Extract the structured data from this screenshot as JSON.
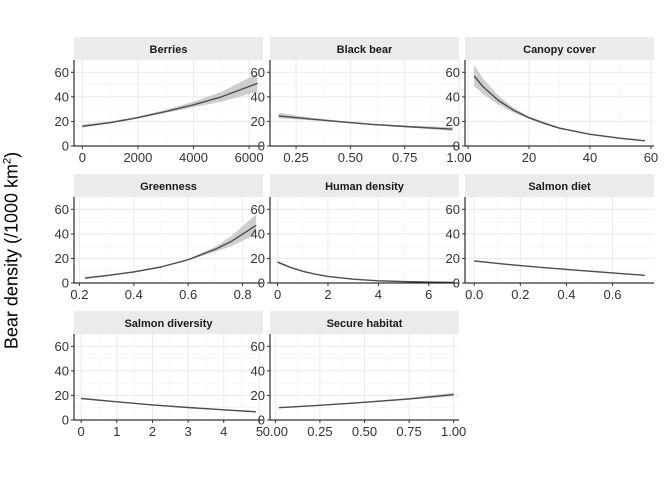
{
  "chart_data": {
    "type": "line",
    "ylabel": {
      "main": "Bear density (/1000 km",
      "sup": "2",
      "close": ")"
    },
    "ylim": [
      0,
      70
    ],
    "yticks": [
      0,
      20,
      40,
      60
    ],
    "grid": true,
    "panels": [
      {
        "title": "Berries",
        "xlim": [
          -300,
          6500
        ],
        "xticks": [
          {
            "v": 0,
            "label": "0"
          },
          {
            "v": 2000,
            "label": "2000"
          },
          {
            "v": 4000,
            "label": "4000"
          },
          {
            "v": 6000,
            "label": "6000"
          }
        ],
        "x": [
          0,
          1000,
          2000,
          3000,
          4000,
          5000,
          6300
        ],
        "y": [
          16,
          19,
          23,
          28,
          33.5,
          40,
          51
        ],
        "lower": [
          15,
          18.5,
          22.5,
          27,
          31.5,
          36,
          44
        ],
        "upper": [
          17.5,
          20,
          24,
          29.5,
          36,
          44,
          59
        ]
      },
      {
        "title": "Black bear",
        "xlim": [
          0.13,
          1.0
        ],
        "xticks": [
          {
            "v": 0.25,
            "label": "0.25"
          },
          {
            "v": 0.5,
            "label": "0.50"
          },
          {
            "v": 0.75,
            "label": "0.75"
          },
          {
            "v": 1.0,
            "label": "1.00"
          }
        ],
        "x": [
          0.17,
          0.3,
          0.45,
          0.6,
          0.75,
          0.97
        ],
        "y": [
          24.5,
          22.2,
          19.8,
          17.6,
          15.9,
          13.7
        ],
        "lower": [
          22.5,
          21.2,
          19.2,
          17,
          15.2,
          12.3
        ],
        "upper": [
          27,
          23.5,
          20.5,
          18.2,
          16.7,
          15.2
        ]
      },
      {
        "title": "Canopy cover",
        "xlim": [
          -1,
          61
        ],
        "xticks": [
          {
            "v": 0,
            "label": "0"
          },
          {
            "v": 20,
            "label": "20"
          },
          {
            "v": 40,
            "label": "40"
          },
          {
            "v": 60,
            "label": "60"
          }
        ],
        "x": [
          2,
          5,
          10,
          15,
          20,
          25,
          30,
          40,
          50,
          58
        ],
        "y": [
          57,
          48,
          37,
          29,
          23,
          18.5,
          14.5,
          9.5,
          6.3,
          4.2
        ],
        "lower": [
          49,
          42,
          33.5,
          27,
          22,
          17.5,
          14,
          9,
          5.8,
          3.8
        ],
        "upper": [
          66,
          54.5,
          41,
          31,
          24,
          19.5,
          15.3,
          10,
          6.9,
          4.8
        ]
      },
      {
        "title": "Greenness",
        "xlim": [
          0.18,
          0.875
        ],
        "xticks": [
          {
            "v": 0.2,
            "label": "0.2"
          },
          {
            "v": 0.4,
            "label": "0.4"
          },
          {
            "v": 0.6,
            "label": "0.6"
          },
          {
            "v": 0.8,
            "label": "0.8"
          }
        ],
        "x": [
          0.22,
          0.3,
          0.4,
          0.5,
          0.6,
          0.7,
          0.76,
          0.85
        ],
        "y": [
          4,
          6,
          9,
          13,
          19,
          27.5,
          34,
          47
        ],
        "lower": [
          3.3,
          5.4,
          8.5,
          12.5,
          18.5,
          25.5,
          30,
          40
        ],
        "upper": [
          4.8,
          6.6,
          9.5,
          13.5,
          19.5,
          29.5,
          38.5,
          56
        ]
      },
      {
        "title": "Human density",
        "xlim": [
          -0.3,
          7.2
        ],
        "xticks": [
          {
            "v": 0,
            "label": "0"
          },
          {
            "v": 2,
            "label": "2"
          },
          {
            "v": 4,
            "label": "4"
          },
          {
            "v": 6,
            "label": "6"
          }
        ],
        "x": [
          0,
          0.5,
          1,
          1.5,
          2,
          3,
          4,
          5,
          6,
          7
        ],
        "y": [
          17,
          12.8,
          9.5,
          7.2,
          5.4,
          3.1,
          1.8,
          1.1,
          0.7,
          0.4
        ],
        "lower": [
          16,
          12.2,
          9.1,
          6.9,
          5.2,
          3,
          1.7,
          1,
          0.6,
          0.3
        ],
        "upper": [
          18,
          13.4,
          9.9,
          7.5,
          5.6,
          3.2,
          1.9,
          1.2,
          0.8,
          0.5
        ]
      },
      {
        "title": "Salmon diet",
        "xlim": [
          -0.04,
          0.78
        ],
        "xticks": [
          {
            "v": 0,
            "label": "0.0"
          },
          {
            "v": 0.2,
            "label": "0.2"
          },
          {
            "v": 0.4,
            "label": "0.4"
          },
          {
            "v": 0.6,
            "label": "0.6"
          }
        ],
        "x": [
          0,
          0.15,
          0.3,
          0.45,
          0.6,
          0.74
        ],
        "y": [
          18,
          15,
          12.5,
          10.3,
          8.2,
          6.3
        ],
        "lower": [
          17.4,
          14.6,
          12.1,
          9.9,
          7.8,
          5.9
        ],
        "upper": [
          18.6,
          15.4,
          12.9,
          10.7,
          8.6,
          6.7
        ]
      },
      {
        "title": "Salmon diversity",
        "xlim": [
          -0.2,
          5.1
        ],
        "xticks": [
          {
            "v": 0,
            "label": "0"
          },
          {
            "v": 1,
            "label": "1"
          },
          {
            "v": 2,
            "label": "2"
          },
          {
            "v": 3,
            "label": "3"
          },
          {
            "v": 4,
            "label": "4"
          },
          {
            "v": 5,
            "label": "5"
          }
        ],
        "x": [
          0,
          1,
          2,
          3,
          4,
          4.9
        ],
        "y": [
          17.5,
          14.8,
          12.3,
          10.2,
          8.3,
          6.7
        ],
        "lower": [
          17,
          14.4,
          11.9,
          9.8,
          7.9,
          6.3
        ],
        "upper": [
          18,
          15.2,
          12.7,
          10.6,
          8.7,
          7.1
        ]
      },
      {
        "title": "Secure habitat",
        "xlim": [
          -0.03,
          1.03
        ],
        "xticks": [
          {
            "v": 0,
            "label": "0.00"
          },
          {
            "v": 0.25,
            "label": "0.25"
          },
          {
            "v": 0.5,
            "label": "0.50"
          },
          {
            "v": 0.75,
            "label": "0.75"
          },
          {
            "v": 1.0,
            "label": "1.00"
          }
        ],
        "x": [
          0.02,
          0.25,
          0.5,
          0.75,
          1.0
        ],
        "y": [
          10,
          12,
          14.4,
          17.2,
          20.7
        ],
        "lower": [
          9.5,
          11.6,
          14,
          16.5,
          19.3
        ],
        "upper": [
          10.5,
          12.4,
          14.8,
          17.9,
          22.2
        ]
      }
    ]
  }
}
